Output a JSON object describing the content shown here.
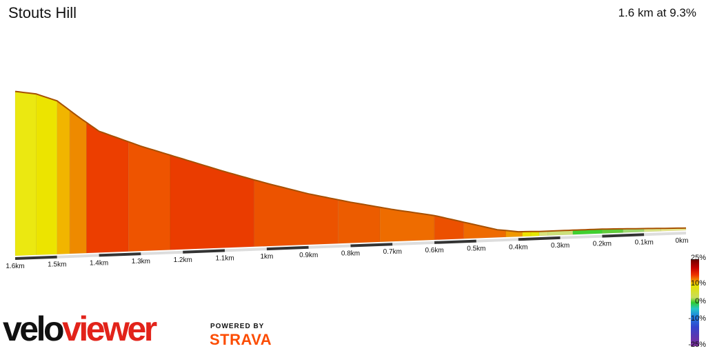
{
  "header": {
    "title": "Stouts Hill",
    "summary": "1.6 km at 9.3%"
  },
  "chart_data": {
    "type": "area",
    "x_unit": "km",
    "x_tick_labels": [
      "1.6km",
      "1.5km",
      "1.4km",
      "1.3km",
      "1.2km",
      "1.1km",
      "1km",
      "0.9km",
      "0.8km",
      "0.7km",
      "0.6km",
      "0.5km",
      "0.4km",
      "0.3km",
      "0.2km",
      "0.1km",
      "0km"
    ],
    "profile": [
      {
        "x": 1.6,
        "y": 149
      },
      {
        "x": 1.55,
        "y": 146
      },
      {
        "x": 1.5,
        "y": 139
      },
      {
        "x": 1.45,
        "y": 124
      },
      {
        "x": 1.4,
        "y": 110
      },
      {
        "x": 1.3,
        "y": 95
      },
      {
        "x": 1.2,
        "y": 82
      },
      {
        "x": 1.1,
        "y": 69
      },
      {
        "x": 1.0,
        "y": 57
      },
      {
        "x": 0.9,
        "y": 46
      },
      {
        "x": 0.8,
        "y": 37
      },
      {
        "x": 0.7,
        "y": 29
      },
      {
        "x": 0.6,
        "y": 22
      },
      {
        "x": 0.5,
        "y": 12
      },
      {
        "x": 0.45,
        "y": 7
      },
      {
        "x": 0.4,
        "y": 4.5
      },
      {
        "x": 0.35,
        "y": 4
      },
      {
        "x": 0.3,
        "y": 4
      },
      {
        "x": 0.2,
        "y": 4
      },
      {
        "x": 0.1,
        "y": 3
      },
      {
        "x": 0.0,
        "y": 2
      }
    ],
    "gradient_segments": [
      {
        "from": 1.6,
        "to": 1.55,
        "color": "#ebe811"
      },
      {
        "from": 1.55,
        "to": 1.5,
        "color": "#ece400"
      },
      {
        "from": 1.5,
        "to": 1.47,
        "color": "#f1b500"
      },
      {
        "from": 1.47,
        "to": 1.43,
        "color": "#ee8a00"
      },
      {
        "from": 1.43,
        "to": 1.33,
        "color": "#ec3e00"
      },
      {
        "from": 1.33,
        "to": 1.23,
        "color": "#ee5400"
      },
      {
        "from": 1.23,
        "to": 1.03,
        "color": "#ea3c00"
      },
      {
        "from": 1.03,
        "to": 0.83,
        "color": "#ec5300"
      },
      {
        "from": 0.83,
        "to": 0.73,
        "color": "#ec5c00"
      },
      {
        "from": 0.73,
        "to": 0.6,
        "color": "#ee6c00"
      },
      {
        "from": 0.6,
        "to": 0.53,
        "color": "#ec5000"
      },
      {
        "from": 0.53,
        "to": 0.43,
        "color": "#ee6a00"
      },
      {
        "from": 0.43,
        "to": 0.39,
        "color": "#f09800"
      },
      {
        "from": 0.39,
        "to": 0.37,
        "color": "#f0e400"
      },
      {
        "from": 0.37,
        "to": 0.35,
        "color": "#e4e800"
      },
      {
        "from": 0.35,
        "to": 0.33,
        "color": "#d9e27a"
      },
      {
        "from": 0.33,
        "to": 0.27,
        "color": "#cce07a"
      },
      {
        "from": 0.27,
        "to": 0.2,
        "color": "#40d030"
      },
      {
        "from": 0.2,
        "to": 0.15,
        "color": "#60cc3a"
      },
      {
        "from": 0.15,
        "to": 0.1,
        "color": "#9ed870"
      },
      {
        "from": 0.1,
        "to": 0.06,
        "color": "#dae488"
      },
      {
        "from": 0.06,
        "to": 0.0,
        "color": "#e6e68e"
      }
    ],
    "colors": {
      "profile_edge": "#a65000",
      "axis_dark": "#333333",
      "axis_light": "#dddddd"
    },
    "legend": {
      "labels": [
        "25%",
        "10%",
        "0%",
        "-10%",
        "-25%"
      ],
      "values": [
        25,
        10,
        0,
        -10,
        -25
      ]
    }
  },
  "branding": {
    "logo_part1": "velo",
    "logo_part2": "viewer",
    "powered_by": "POWERED BY",
    "strava": "STRAVA"
  }
}
